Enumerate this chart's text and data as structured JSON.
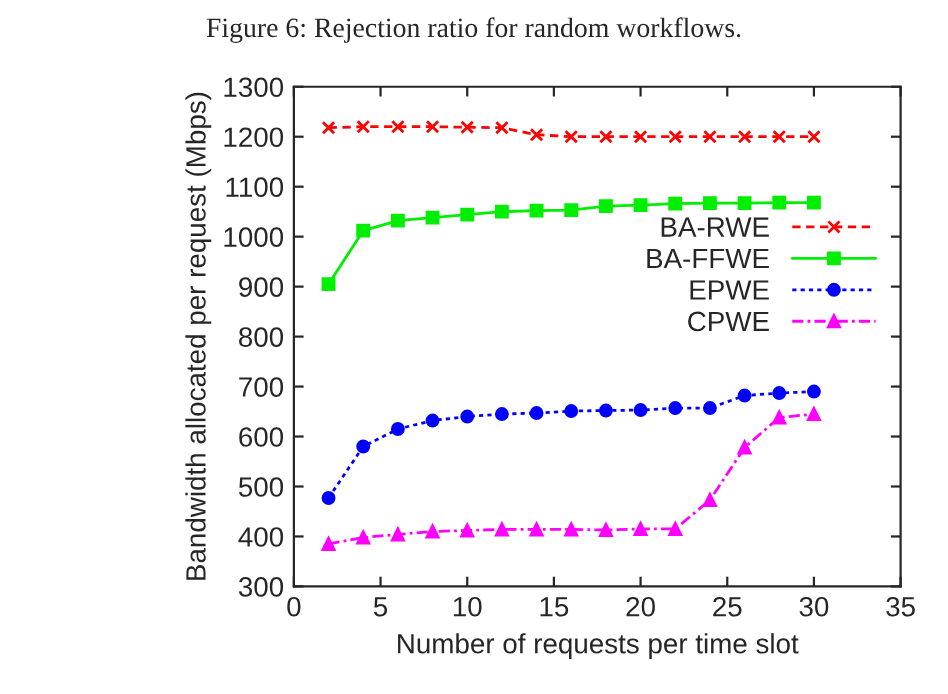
{
  "chart_data": {
    "type": "line",
    "xlabel": "Number of requests per time slot",
    "ylabel": "Bandwidth allocated per request (Mbps)",
    "annotations": [
      "Figure 6: Rejection ratio for random workflows."
    ],
    "x": [
      2,
      4,
      6,
      8,
      10,
      12,
      14,
      16,
      18,
      20,
      22,
      24,
      26,
      28,
      30
    ],
    "series": [
      {
        "name": "BA-RWE",
        "color": "#ff0000",
        "marker": "cross",
        "line_style": "dashed",
        "values": [
          1218,
          1220,
          1220,
          1220,
          1219,
          1218,
          1204,
          1200,
          1200,
          1200,
          1200,
          1200,
          1200,
          1200,
          1200
        ]
      },
      {
        "name": "BA-FFWE",
        "color": "#00ee00",
        "marker": "square",
        "line_style": "solid",
        "values": [
          905,
          1012,
          1032,
          1038,
          1044,
          1050,
          1052,
          1053,
          1061,
          1063,
          1066,
          1067,
          1067,
          1068,
          1068
        ]
      },
      {
        "name": "EPWE",
        "color": "#0000ff",
        "marker": "circle",
        "line_style": "dotted",
        "values": [
          477,
          580,
          615,
          632,
          640,
          645,
          647,
          651,
          652,
          653,
          657,
          657,
          682,
          687,
          690
        ]
      },
      {
        "name": "CPWE",
        "color": "#ff00ff",
        "marker": "triangle",
        "line_style": "dashdot",
        "values": [
          385,
          398,
          404,
          410,
          412,
          414,
          414,
          414,
          413,
          415,
          415,
          473,
          578,
          638,
          645
        ]
      }
    ],
    "xlim": [
      0,
      35
    ],
    "xticks": [
      0,
      5,
      10,
      15,
      20,
      25,
      30,
      35
    ],
    "ylim": [
      300,
      1300
    ],
    "yticks": [
      300,
      400,
      500,
      600,
      700,
      800,
      900,
      1000,
      1100,
      1200,
      1300
    ],
    "grid": false,
    "legend": "right"
  }
}
